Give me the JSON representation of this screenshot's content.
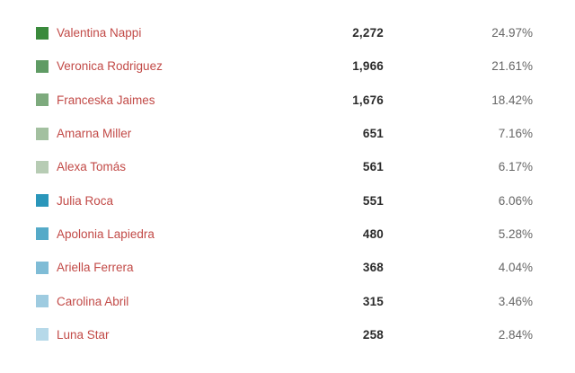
{
  "colors": {
    "link": "#c24a47",
    "value": "#2b2b2b",
    "percent": "#666666",
    "background": "#ffffff"
  },
  "chart_data": {
    "type": "table",
    "title": "",
    "legend_position": "left-swatches",
    "grid": false,
    "categories": [
      "Valentina Nappi",
      "Veronica Rodriguez",
      "Franceska Jaimes",
      "Amarna Miller",
      "Alexa Tomás",
      "Julia Roca",
      "Apolonia Lapiedra",
      "Ariella Ferrera",
      "Carolina Abril",
      "Luna Star"
    ],
    "values": [
      2272,
      1966,
      1676,
      651,
      561,
      551,
      480,
      368,
      315,
      258
    ],
    "percents": [
      24.97,
      21.61,
      18.42,
      7.16,
      6.17,
      6.06,
      5.28,
      4.04,
      3.46,
      2.84
    ],
    "rows": [
      {
        "label": "Valentina Nappi",
        "value": "2,272",
        "percent": "24.97%",
        "color": "#3a8a3c"
      },
      {
        "label": "Veronica Rodriguez",
        "value": "1,966",
        "percent": "21.61%",
        "color": "#5f9b64"
      },
      {
        "label": "Franceska Jaimes",
        "value": "1,676",
        "percent": "18.42%",
        "color": "#7daa7d"
      },
      {
        "label": "Amarna Miller",
        "value": "651",
        "percent": "7.16%",
        "color": "#a3c0a0"
      },
      {
        "label": "Alexa Tomás",
        "value": "561",
        "percent": "6.17%",
        "color": "#b7ccb4"
      },
      {
        "label": "Julia Roca",
        "value": "551",
        "percent": "6.06%",
        "color": "#2a96ba"
      },
      {
        "label": "Apolonia Lapiedra",
        "value": "480",
        "percent": "5.28%",
        "color": "#55aac8"
      },
      {
        "label": "Ariella Ferrera",
        "value": "368",
        "percent": "4.04%",
        "color": "#7fbcd6"
      },
      {
        "label": "Carolina Abril",
        "value": "315",
        "percent": "3.46%",
        "color": "#9ecbe0"
      },
      {
        "label": "Luna Star",
        "value": "258",
        "percent": "2.84%",
        "color": "#b6d9e9"
      }
    ]
  }
}
